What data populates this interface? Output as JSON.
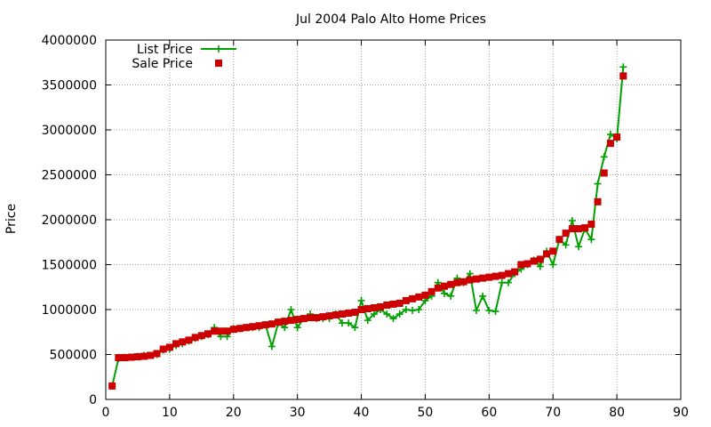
{
  "chart_data": {
    "type": "line",
    "title": "Jul 2004 Palo Alto Home Prices",
    "xlabel": "",
    "ylabel": "Price",
    "xlim": [
      0,
      90
    ],
    "ylim": [
      0,
      4000000
    ],
    "x_ticks": [
      0,
      10,
      20,
      30,
      40,
      50,
      60,
      70,
      80,
      90
    ],
    "y_ticks": [
      0,
      500000,
      1000000,
      1500000,
      2000000,
      2500000,
      3000000,
      3500000,
      4000000
    ],
    "x_tick_labels": [
      "0",
      "10",
      "20",
      "30",
      "40",
      "50",
      "60",
      "70",
      "80",
      "90"
    ],
    "y_tick_labels": [
      "0",
      "500000",
      "1000000",
      "1500000",
      "2000000",
      "2500000",
      "3000000",
      "3500000",
      "4000000"
    ],
    "grid": true,
    "legend_position": "top-left",
    "series": [
      {
        "name": "List Price",
        "style": "line-plus",
        "color": "#00a000",
        "x": [
          1,
          2,
          3,
          4,
          5,
          6,
          7,
          8,
          9,
          10,
          11,
          12,
          13,
          14,
          15,
          16,
          17,
          18,
          19,
          20,
          21,
          22,
          23,
          24,
          25,
          26,
          27,
          28,
          29,
          30,
          31,
          32,
          33,
          34,
          35,
          36,
          37,
          38,
          39,
          40,
          41,
          42,
          43,
          44,
          45,
          46,
          47,
          48,
          49,
          50,
          51,
          52,
          53,
          54,
          55,
          56,
          57,
          58,
          59,
          60,
          61,
          62,
          63,
          64,
          65,
          66,
          67,
          68,
          69,
          70,
          71,
          72,
          73,
          74,
          75,
          76,
          77,
          78,
          79,
          80,
          81
        ],
        "y": [
          150000,
          455000,
          470000,
          470000,
          480000,
          490000,
          490000,
          500000,
          550000,
          560000,
          600000,
          620000,
          650000,
          680000,
          700000,
          720000,
          800000,
          700000,
          700000,
          790000,
          790000,
          800000,
          800000,
          800000,
          830000,
          590000,
          850000,
          800000,
          1000000,
          800000,
          900000,
          950000,
          900000,
          900000,
          900000,
          950000,
          850000,
          850000,
          800000,
          1100000,
          880000,
          950000,
          1000000,
          950000,
          900000,
          950000,
          1000000,
          990000,
          1000000,
          1100000,
          1150000,
          1300000,
          1180000,
          1150000,
          1350000,
          1300000,
          1400000,
          990000,
          1150000,
          990000,
          980000,
          1300000,
          1300000,
          1400000,
          1450000,
          1500000,
          1550000,
          1480000,
          1650000,
          1500000,
          1780000,
          1720000,
          1990000,
          1700000,
          1900000,
          1780000,
          2400000,
          2700000,
          2950000,
          2900000,
          3700000
        ]
      },
      {
        "name": "Sale Price",
        "style": "square-points",
        "color": "#cc0000",
        "x": [
          1,
          2,
          3,
          4,
          5,
          6,
          7,
          8,
          9,
          10,
          11,
          12,
          13,
          14,
          15,
          16,
          17,
          18,
          19,
          20,
          21,
          22,
          23,
          24,
          25,
          26,
          27,
          28,
          29,
          30,
          31,
          32,
          33,
          34,
          35,
          36,
          37,
          38,
          39,
          40,
          41,
          42,
          43,
          44,
          45,
          46,
          47,
          48,
          49,
          50,
          51,
          52,
          53,
          54,
          55,
          56,
          57,
          58,
          59,
          60,
          61,
          62,
          63,
          64,
          65,
          66,
          67,
          68,
          69,
          70,
          71,
          72,
          73,
          74,
          75,
          76,
          77,
          78,
          79,
          80,
          81
        ],
        "y": [
          150000,
          465000,
          465000,
          470000,
          475000,
          480000,
          490000,
          510000,
          560000,
          580000,
          620000,
          640000,
          660000,
          690000,
          710000,
          730000,
          760000,
          760000,
          760000,
          780000,
          790000,
          800000,
          810000,
          820000,
          830000,
          840000,
          860000,
          870000,
          880000,
          890000,
          900000,
          910000,
          910000,
          920000,
          930000,
          940000,
          950000,
          960000,
          970000,
          1000000,
          1010000,
          1020000,
          1030000,
          1050000,
          1060000,
          1070000,
          1100000,
          1120000,
          1140000,
          1160000,
          1200000,
          1240000,
          1260000,
          1280000,
          1300000,
          1310000,
          1330000,
          1340000,
          1350000,
          1360000,
          1370000,
          1380000,
          1400000,
          1420000,
          1500000,
          1510000,
          1540000,
          1560000,
          1620000,
          1650000,
          1780000,
          1850000,
          1900000,
          1900000,
          1910000,
          1950000,
          2200000,
          2520000,
          2850000,
          2920000,
          3600000
        ]
      }
    ]
  }
}
